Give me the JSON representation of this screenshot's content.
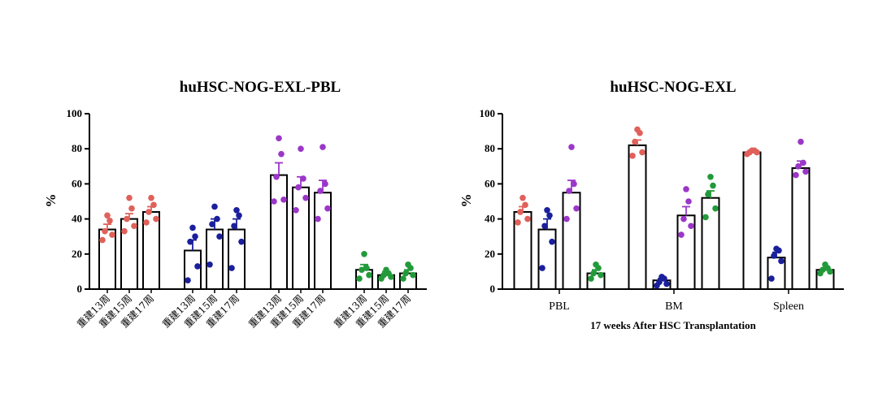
{
  "colors": {
    "red": "#e0605a",
    "blue": "#1a1f9c",
    "purple": "#9b37c8",
    "green": "#239a3a"
  },
  "chart_data": [
    {
      "type": "bar",
      "title": "huHSC-NOG-EXL-PBL",
      "ylabel": "%",
      "xlabel": "",
      "ylim": [
        0,
        100
      ],
      "yticks": [
        "0",
        "20",
        "40",
        "60",
        "80",
        "100"
      ],
      "groups": [
        {
          "color": "red",
          "bars": [
            {
              "label": "重建13周",
              "mean": 34,
              "sem": 3,
              "points": [
                28,
                31,
                33,
                39,
                42
              ]
            },
            {
              "label": "重建15周",
              "mean": 40,
              "sem": 3,
              "points": [
                33,
                36,
                40,
                46,
                52
              ]
            },
            {
              "label": "重建17周",
              "mean": 44,
              "sem": 3,
              "points": [
                38,
                40,
                44,
                48,
                52
              ]
            }
          ]
        },
        {
          "color": "blue",
          "bars": [
            {
              "label": "重建13周",
              "mean": 22,
              "sem": 6,
              "points": [
                5,
                13,
                27,
                30,
                35
              ]
            },
            {
              "label": "重建15周",
              "mean": 34,
              "sem": 6,
              "points": [
                14,
                30,
                37,
                40,
                47
              ]
            },
            {
              "label": "重建17周",
              "mean": 34,
              "sem": 6,
              "points": [
                12,
                27,
                36,
                42,
                45
              ]
            }
          ]
        },
        {
          "color": "purple",
          "bars": [
            {
              "label": "重建13周",
              "mean": 65,
              "sem": 7,
              "points": [
                50,
                51,
                64,
                77,
                86
              ]
            },
            {
              "label": "重建15周",
              "mean": 58,
              "sem": 6,
              "points": [
                45,
                52,
                58,
                63,
                80
              ]
            },
            {
              "label": "重建17周",
              "mean": 55,
              "sem": 7,
              "points": [
                40,
                46,
                56,
                60,
                81
              ]
            }
          ]
        },
        {
          "color": "green",
          "bars": [
            {
              "label": "重建13周",
              "mean": 11,
              "sem": 3,
              "points": [
                6,
                8,
                11,
                12,
                20
              ]
            },
            {
              "label": "重建15周",
              "mean": 8,
              "sem": 2,
              "points": [
                6,
                7,
                8,
                9,
                11
              ]
            },
            {
              "label": "重建17周",
              "mean": 9,
              "sem": 2,
              "points": [
                6,
                8,
                9,
                12,
                14
              ]
            }
          ]
        }
      ]
    },
    {
      "type": "bar",
      "title": "huHSC-NOG-EXL",
      "ylabel": "%",
      "xlabel": "17 weeks After HSC Transplantation",
      "ylim": [
        0,
        100
      ],
      "yticks": [
        "0",
        "20",
        "40",
        "60",
        "80",
        "100"
      ],
      "groups": [
        {
          "label": "PBL",
          "bars": [
            {
              "color": "red",
              "mean": 44,
              "sem": 3,
              "points": [
                38,
                40,
                44,
                48,
                52
              ]
            },
            {
              "color": "blue",
              "mean": 34,
              "sem": 6,
              "points": [
                12,
                27,
                36,
                42,
                45
              ]
            },
            {
              "color": "purple",
              "mean": 55,
              "sem": 7,
              "points": [
                40,
                46,
                56,
                60,
                81
              ]
            },
            {
              "color": "green",
              "mean": 9,
              "sem": 2,
              "points": [
                6,
                8,
                9,
                12,
                14
              ]
            }
          ]
        },
        {
          "label": "BM",
          "bars": [
            {
              "color": "red",
              "mean": 82,
              "sem": 3,
              "points": [
                76,
                78,
                84,
                89,
                91
              ]
            },
            {
              "color": "blue",
              "mean": 5,
              "sem": 1,
              "points": [
                2,
                3,
                4,
                6,
                7
              ]
            },
            {
              "color": "purple",
              "mean": 42,
              "sem": 5,
              "points": [
                31,
                36,
                40,
                50,
                57
              ]
            },
            {
              "color": "green",
              "mean": 52,
              "sem": 4,
              "points": [
                41,
                46,
                54,
                59,
                64
              ]
            }
          ]
        },
        {
          "label": "Spleen",
          "bars": [
            {
              "color": "red",
              "mean": 78,
              "sem": 0.5,
              "points": [
                77,
                78,
                78,
                79,
                79
              ]
            },
            {
              "color": "blue",
              "mean": 18,
              "sem": 3,
              "points": [
                6,
                16,
                19,
                22,
                23
              ]
            },
            {
              "color": "purple",
              "mean": 69,
              "sem": 4,
              "points": [
                65,
                67,
                70,
                72,
                84
              ]
            },
            {
              "color": "green",
              "mean": 11,
              "sem": 1,
              "points": [
                9,
                10,
                11,
                12,
                14
              ]
            }
          ]
        }
      ]
    }
  ]
}
